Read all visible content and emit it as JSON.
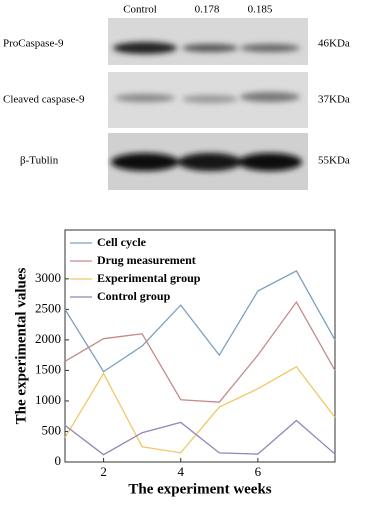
{
  "blot": {
    "lanes": [
      "Control",
      "0.178",
      "0.185"
    ],
    "rows": [
      {
        "label": "ProCaspase-9",
        "size": "46KDa"
      },
      {
        "label": "Cleaved caspase-9",
        "size": "37KDa"
      },
      {
        "label": "β-Tublin",
        "size": "55KDa"
      }
    ]
  },
  "chart_data": {
    "type": "line",
    "x_label": "The experiment weeks",
    "y_label": "The experimental values",
    "x": [
      1,
      2,
      3,
      4,
      5,
      6,
      7,
      8
    ],
    "series": [
      {
        "name": "Cell cycle",
        "color": "#7f9fbf",
        "values": [
          2500,
          1480,
          1900,
          2570,
          1750,
          2800,
          3130,
          2000
        ]
      },
      {
        "name": "Drug measurement",
        "color": "#c48a8a",
        "values": [
          1650,
          2020,
          2100,
          1020,
          980,
          1750,
          2620,
          1500
        ]
      },
      {
        "name": "Experimental group",
        "color": "#f0c868",
        "values": [
          400,
          1450,
          250,
          150,
          900,
          1200,
          1560,
          730
        ]
      },
      {
        "name": "Control group",
        "color": "#9484b8",
        "values": [
          600,
          120,
          480,
          650,
          150,
          130,
          680,
          130
        ]
      }
    ],
    "xlim": [
      1,
      8
    ],
    "xticks": [
      2,
      4,
      6
    ],
    "ylim": [
      0,
      3800
    ],
    "yticks": [
      0,
      500,
      1000,
      1500,
      2000,
      2500,
      3000
    ]
  }
}
